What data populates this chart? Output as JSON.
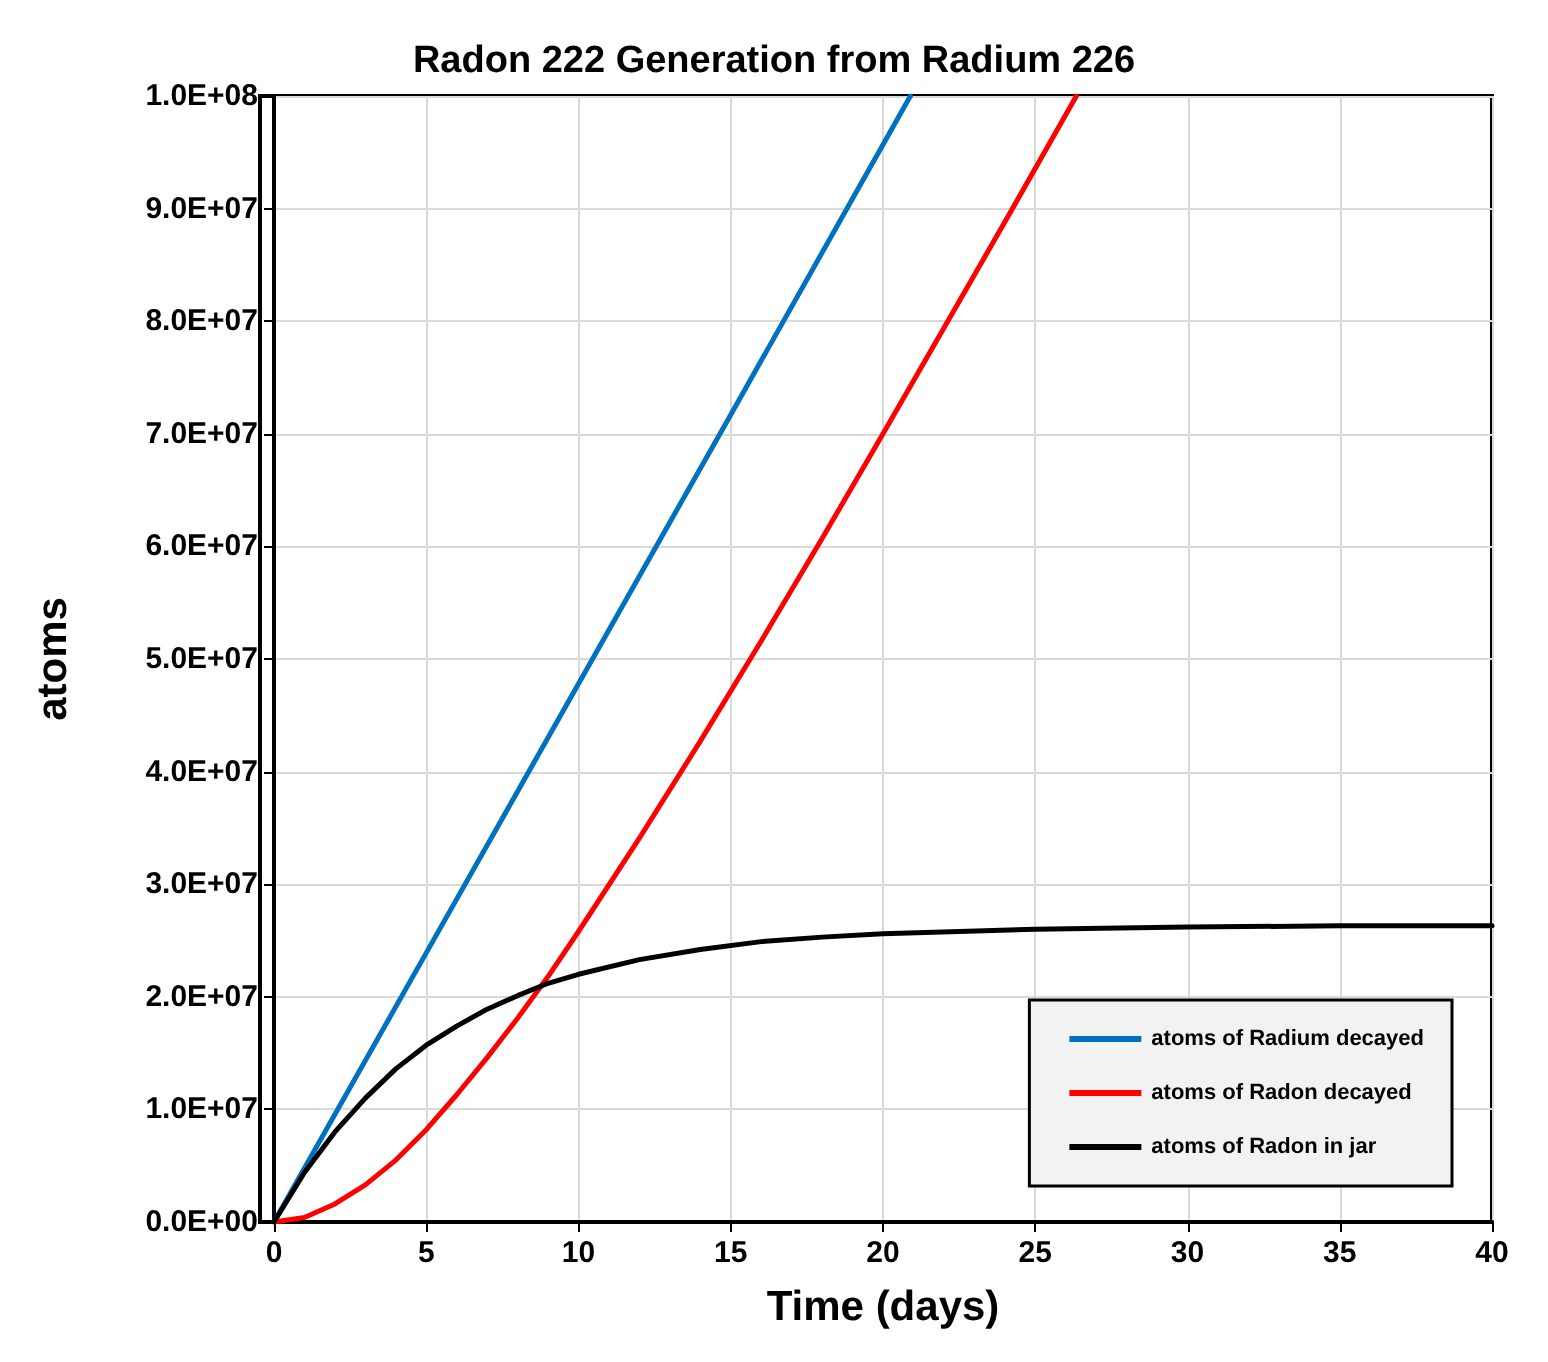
{
  "chart_data": {
    "type": "line",
    "title": "Radon 222 Generation from Radium 226",
    "xlabel": "Time (days)",
    "ylabel": "atoms",
    "xlim": [
      0,
      40
    ],
    "xticks": [
      0,
      5,
      10,
      15,
      20,
      25,
      30,
      35,
      40
    ],
    "ylim": [
      0,
      100000000
    ],
    "yticks": [
      {
        "value": 0,
        "label": "0.0E+00"
      },
      {
        "value": 10000000,
        "label": "1.0E+07"
      },
      {
        "value": 20000000,
        "label": "2.0E+07"
      },
      {
        "value": 30000000,
        "label": "3.0E+07"
      },
      {
        "value": 40000000,
        "label": "4.0E+07"
      },
      {
        "value": 50000000,
        "label": "5.0E+07"
      },
      {
        "value": 60000000,
        "label": "6.0E+07"
      },
      {
        "value": 70000000,
        "label": "7.0E+07"
      },
      {
        "value": 80000000,
        "label": "8.0E+07"
      },
      {
        "value": 90000000,
        "label": "9.0E+07"
      },
      {
        "value": 100000000,
        "label": "1.0E+08"
      }
    ],
    "grid": true,
    "legend": "bottom right",
    "marker": "none",
    "line_style": "solid",
    "series": [
      {
        "name": "atoms of Radium decayed",
        "color": "#0070c0",
        "x": [
          0,
          5,
          10,
          15,
          20.9
        ],
        "values": [
          0,
          23900000,
          47800000,
          71700000,
          100000000
        ]
      },
      {
        "name": "atoms of Radon decayed",
        "color": "#ff0000",
        "x": [
          0,
          1,
          2,
          3,
          4,
          5,
          6,
          7,
          8,
          9,
          10,
          12,
          14,
          16,
          18,
          20,
          22,
          24,
          26.35
        ],
        "values": [
          0,
          400000,
          1600000,
          3300000,
          5500000,
          8200000,
          11300000,
          14600000,
          18100000,
          21800000,
          25800000,
          34100000,
          42700000,
          51600000,
          60700000,
          70000000,
          79400000,
          88800000,
          100000000
        ]
      },
      {
        "name": "atoms of Radon in jar",
        "color": "#000000",
        "x": [
          0,
          1,
          2,
          3,
          4,
          5,
          6,
          7,
          8,
          9,
          10,
          12,
          14,
          16,
          18,
          20,
          25,
          30,
          35,
          40
        ],
        "values": [
          0,
          4400000,
          8000000,
          11000000,
          13600000,
          15700000,
          17400000,
          18900000,
          20100000,
          21200000,
          22000000,
          23300000,
          24200000,
          24900000,
          25300000,
          25600000,
          26000000,
          26200000,
          26300000,
          26300000
        ]
      }
    ]
  }
}
